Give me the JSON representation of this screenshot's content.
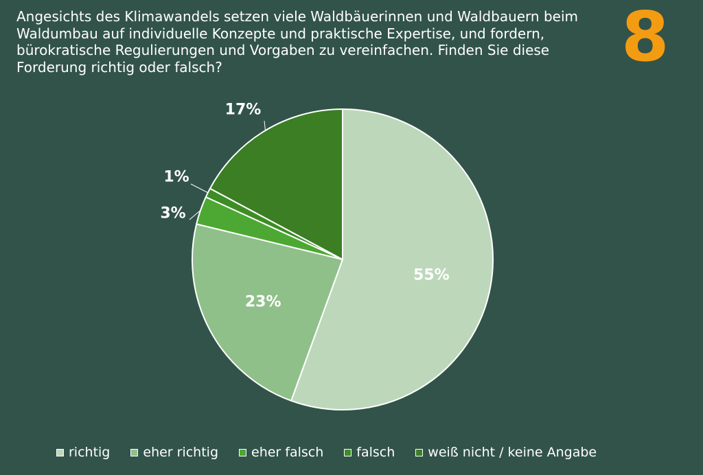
{
  "question": {
    "text": "Angesichts des Klimawandels setzen viele Waldbäuerinnen und Waldbauern beim Waldumbau auf individuelle Konzepte und praktische Expertise, und fordern, bürokratische Regulierungen und Vorgaben zu vereinfachen. Finden Sie diese Forderung richtig oder falsch?",
    "number": "8"
  },
  "colors": {
    "background": "#32534a",
    "number": "#f39c12"
  },
  "chart_data": {
    "type": "pie",
    "categories": [
      "richtig",
      "eher richtig",
      "eher falsch",
      "falsch",
      "weiß nicht / keine Angabe"
    ],
    "values": [
      55,
      23,
      3,
      1,
      17
    ],
    "labels": [
      "55%",
      "23%",
      "3%",
      "1%",
      "17%"
    ],
    "colors": [
      "#bdd7bb",
      "#90c08a",
      "#4ca832",
      "#3d8d25",
      "#3b7e24"
    ],
    "start_angle_deg": 0,
    "direction": "clockwise",
    "legend_position": "bottom"
  },
  "legend": {
    "items": [
      {
        "label": "richtig",
        "color": "#bdd7bb"
      },
      {
        "label": "eher richtig",
        "color": "#90c08a"
      },
      {
        "label": "eher falsch",
        "color": "#4ca832"
      },
      {
        "label": "falsch",
        "color": "#3d8d25"
      },
      {
        "label": "weiß nicht / keine Angabe",
        "color": "#3b7e24"
      }
    ]
  }
}
